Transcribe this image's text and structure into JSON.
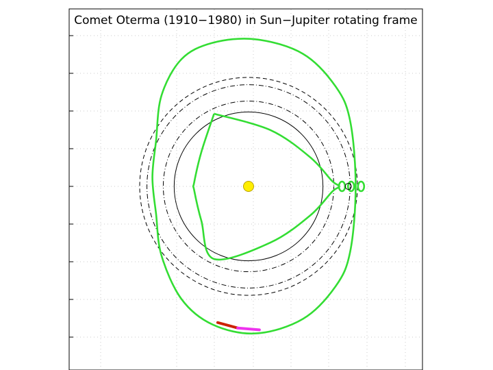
{
  "title": "Comet Oterma (1910−1980) in Sun−Jupiter rotating frame",
  "colors": {
    "trajectory": "#33dd33",
    "sun": "#ffee00",
    "sun_edge": "#b8a000",
    "orbit_circles": "#000000",
    "grid": "#c8c8c8",
    "marker_red": "#cc2200",
    "marker_magenta": "#ee33ee"
  },
  "chart_data": {
    "type": "line",
    "title": "Comet Oterma (1910−1980) in Sun−Jupiter rotating frame",
    "xlim": [
      -8,
      8
    ],
    "ylim": [
      -8,
      8
    ],
    "grid": true,
    "series": [
      {
        "style": "solid green curve, outer loop around Sun and Jupiter region",
        "x": [
          0.4,
          3.0,
          4.8,
          5.6,
          5.9,
          5.6,
          4.8,
          3.0,
          0.4,
          -2.0,
          -3.7,
          -4.8,
          -5.1,
          -5.3,
          -5.1,
          -4.8,
          -3.7,
          -2.0,
          0.4
        ],
        "y": [
          8.1,
          7.3,
          5.5,
          3.6,
          0.0,
          -3.6,
          -5.5,
          -7.3,
          -8.1,
          -7.6,
          -6.2,
          -3.8,
          -1.5,
          0.5,
          2.5,
          5.0,
          7.0,
          7.9,
          8.1
        ]
      },
      {
        "style": "solid green curve, inner three-lobed orbit",
        "x": [
          -1.9,
          1.2,
          3.4,
          4.6,
          5.0,
          4.6,
          3.4,
          1.2,
          -1.9,
          -2.6,
          -3.0,
          -3.0,
          -2.6,
          -1.9
        ],
        "y": [
          4.0,
          3.1,
          1.6,
          0.3,
          0.0,
          -0.3,
          -1.6,
          -3.1,
          -4.0,
          -1.9,
          -0.2,
          0.2,
          1.9,
          4.0
        ]
      },
      {
        "style": "small green loops near Jupiter",
        "x": [
          5.0,
          5.3,
          5.5,
          5.8,
          6.1,
          6.3
        ],
        "y": [
          0.0,
          0.2,
          -0.2,
          0.2,
          -0.2,
          0.0
        ]
      },
      {
        "style": "black solid circle",
        "x_center": 0,
        "y_center": 0,
        "radius": 4.1
      },
      {
        "style": "black dash-dot circle",
        "x_center": 0,
        "y_center": 0,
        "radius": 4.7
      },
      {
        "style": "black dash-dot circle",
        "x_center": 0,
        "y_center": 0,
        "radius": 5.6
      },
      {
        "style": "black dashed circle",
        "x_center": 0,
        "y_center": 0,
        "radius": 6.0
      },
      {
        "style": "red and magenta segment near bottom",
        "x": [
          -1.7,
          -0.6,
          0.6
        ],
        "y": [
          -7.5,
          -7.8,
          -7.9
        ]
      }
    ],
    "points": [
      {
        "marker": "yellow filled circle (Sun)",
        "x": 0,
        "y": 0
      },
      {
        "marker": "small circle (Jupiter)",
        "x": 5.5,
        "y": 0
      }
    ]
  }
}
